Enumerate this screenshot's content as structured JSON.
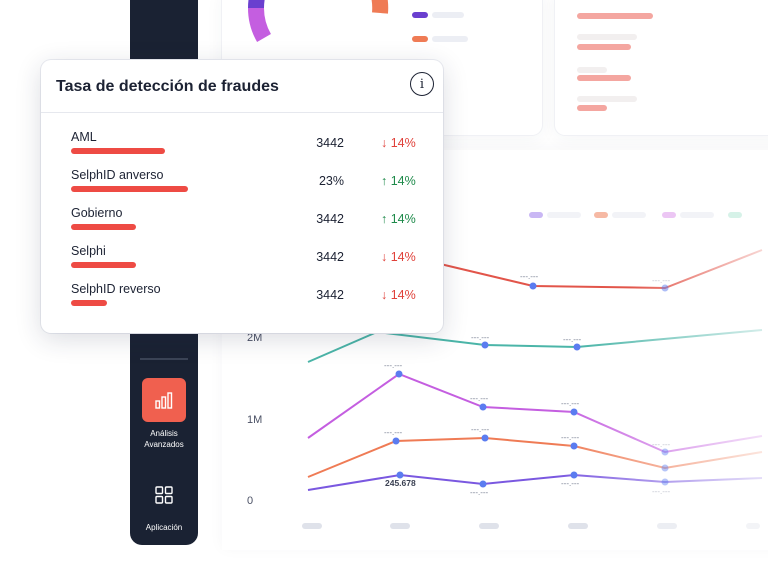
{
  "popup": {
    "title": "Tasa de detección de fraudes",
    "rows": [
      {
        "label": "AML",
        "value": "3442",
        "trend": "↓ 14%",
        "direction": "down",
        "bar_fill": 0.52
      },
      {
        "label": "SelphID anverso",
        "value": "23%",
        "trend": "↑ 14%",
        "direction": "up",
        "bar_fill": 0.65
      },
      {
        "label": "Gobierno",
        "value": "3442",
        "trend": "↑ 14%",
        "direction": "up",
        "bar_fill": 0.36
      },
      {
        "label": "Selphi",
        "value": "3442",
        "trend": "↓ 14%",
        "direction": "down",
        "bar_fill": 0.36
      },
      {
        "label": "SelphID reverso",
        "value": "3442",
        "trend": "↓ 14%",
        "direction": "down",
        "bar_fill": 0.2
      }
    ]
  },
  "sidebar": {
    "active_item": {
      "label_line1": "Análisis",
      "label_line2": "Avanzados",
      "icon": "bar-chart-icon"
    },
    "apps_item": {
      "label": "Aplicación",
      "icon": "grid-icon"
    }
  },
  "chart": {
    "y_ticks": [
      "2M",
      "1M",
      "0"
    ],
    "data_label": "245.678",
    "placeholder_label": "---.---",
    "colors": {
      "teal": "#4bb5a8",
      "purple": "#7a58e0",
      "orange": "#ef7b55",
      "violet": "#c45ee0",
      "red": "#e2554a",
      "point": "#5b7cf0"
    }
  },
  "colors": {
    "sidebar": "#1a2233",
    "accent": "#f0604f",
    "bar": "#ee4b44"
  }
}
